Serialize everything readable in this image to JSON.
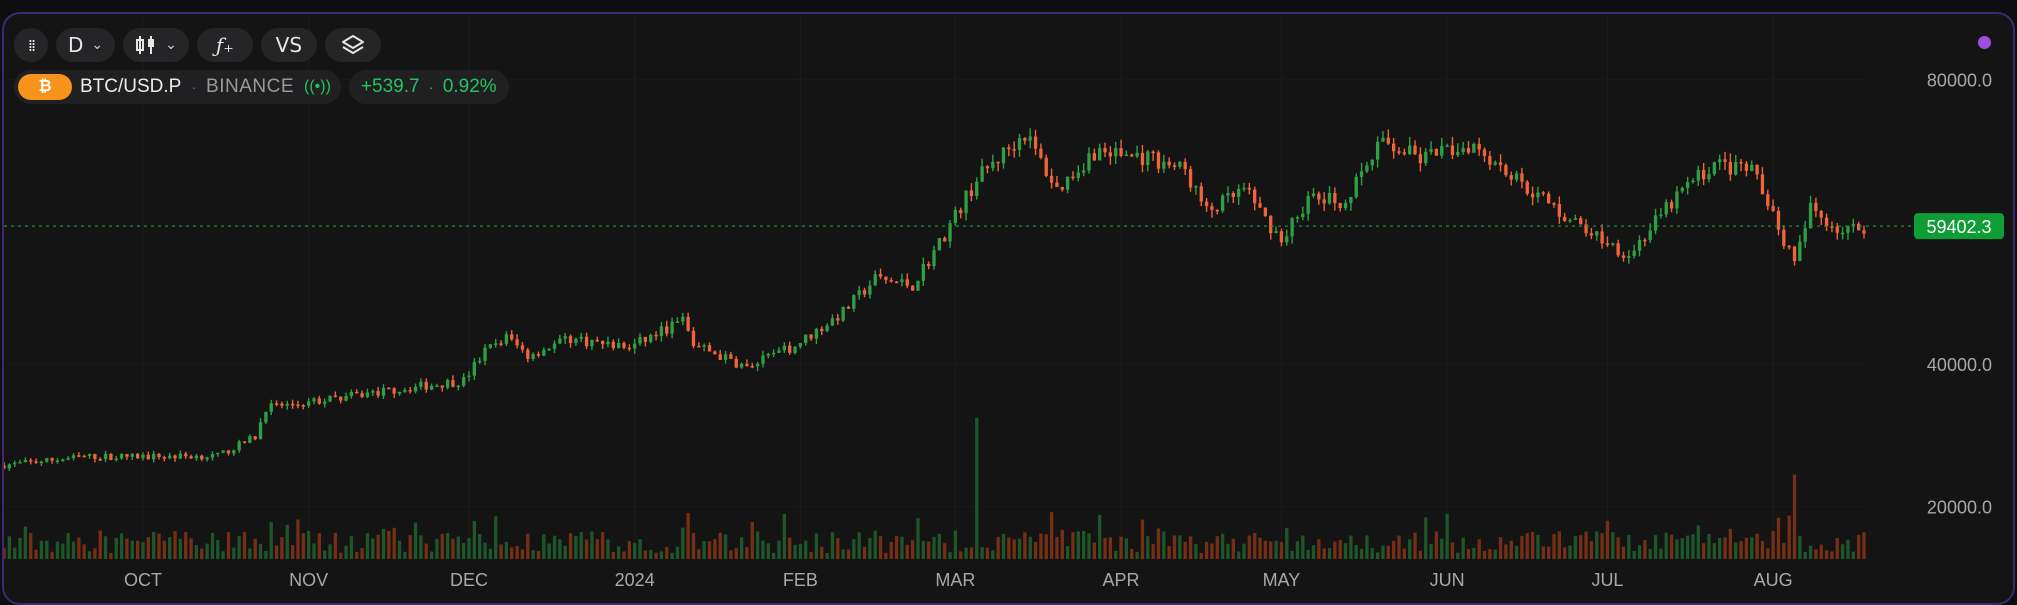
{
  "toolbar": {
    "grip_icon": "grip-dots-icon",
    "interval": "D",
    "chart_type_icon": "candlestick-icon",
    "indicator_icon": "function-icon",
    "compare_label": "VS",
    "layers_icon": "layers-icon"
  },
  "symbol": {
    "coin_icon": "bitcoin-icon",
    "name": "BTC/USD.P",
    "exchange": "BINANCE",
    "live_icon": "live-broadcast-icon",
    "change_abs": "+539.7",
    "change_pct": "0.92%"
  },
  "colors": {
    "up": "#2ea043",
    "down": "#f0643a",
    "price_tag": "#0f9d36",
    "accent": "#9d4edd"
  },
  "chart_data": {
    "type": "candlestick",
    "ylim": [
      15000,
      85000
    ],
    "y_ticks": [
      "80000.0",
      "40000.0",
      "20000.0"
    ],
    "y_tick_values": [
      80000,
      40000,
      20000
    ],
    "x_ticks": [
      "OCT",
      "NOV",
      "DEC",
      "2024",
      "FEB",
      "MAR",
      "APR",
      "MAY",
      "JUN",
      "JUL",
      "AUG"
    ],
    "x_tick_dates": [
      "2023-10-01",
      "2023-11-01",
      "2023-12-01",
      "2024-01-01",
      "2024-02-01",
      "2024-03-01",
      "2024-04-01",
      "2024-05-01",
      "2024-06-01",
      "2024-07-01",
      "2024-08-01"
    ],
    "x_range": [
      "2023-09-05",
      "2024-08-18"
    ],
    "last_price": 59402.3,
    "last_price_label": "59402.3",
    "close_anchors": [
      [
        "2023-09-05",
        25800
      ],
      [
        "2023-09-20",
        27000
      ],
      [
        "2023-10-01",
        27000
      ],
      [
        "2023-10-15",
        27100
      ],
      [
        "2023-10-22",
        29800
      ],
      [
        "2023-10-24",
        33900
      ],
      [
        "2023-11-01",
        34600
      ],
      [
        "2023-11-15",
        36200
      ],
      [
        "2023-11-30",
        37700
      ],
      [
        "2023-12-04",
        41800
      ],
      [
        "2023-12-08",
        43800
      ],
      [
        "2023-12-12",
        41300
      ],
      [
        "2023-12-20",
        43600
      ],
      [
        "2023-12-31",
        42300
      ],
      [
        "2024-01-10",
        46200
      ],
      [
        "2024-01-12",
        42800
      ],
      [
        "2024-01-22",
        39500
      ],
      [
        "2024-01-31",
        42600
      ],
      [
        "2024-02-09",
        47300
      ],
      [
        "2024-02-15",
        52000
      ],
      [
        "2024-02-22",
        51100
      ],
      [
        "2024-02-27",
        57000
      ],
      [
        "2024-03-05",
        66000
      ],
      [
        "2024-03-14",
        72500
      ],
      [
        "2024-03-20",
        64500
      ],
      [
        "2024-03-27",
        69900
      ],
      [
        "2024-04-01",
        69500
      ],
      [
        "2024-04-07",
        68900
      ],
      [
        "2024-04-13",
        67200
      ],
      [
        "2024-04-17",
        61300
      ],
      [
        "2024-04-24",
        64400
      ],
      [
        "2024-05-01",
        57500
      ],
      [
        "2024-05-06",
        63200
      ],
      [
        "2024-05-13",
        62900
      ],
      [
        "2024-05-20",
        71400
      ],
      [
        "2024-05-27",
        68800
      ],
      [
        "2024-06-06",
        71100
      ],
      [
        "2024-06-14",
        66000
      ],
      [
        "2024-06-24",
        60300
      ],
      [
        "2024-07-05",
        55400
      ],
      [
        "2024-07-15",
        64400
      ],
      [
        "2024-07-21",
        68200
      ],
      [
        "2024-07-29",
        66800
      ],
      [
        "2024-08-05",
        53900
      ],
      [
        "2024-08-08",
        61900
      ],
      [
        "2024-08-14",
        58600
      ],
      [
        "2024-08-18",
        59400
      ]
    ],
    "volume_spikes": [
      [
        "2024-03-05",
        5.2
      ],
      [
        "2024-08-05",
        3.4
      ],
      [
        "2024-03-01",
        2.7
      ],
      [
        "2024-03-19",
        2.1
      ],
      [
        "2024-01-11",
        1.8
      ]
    ]
  }
}
